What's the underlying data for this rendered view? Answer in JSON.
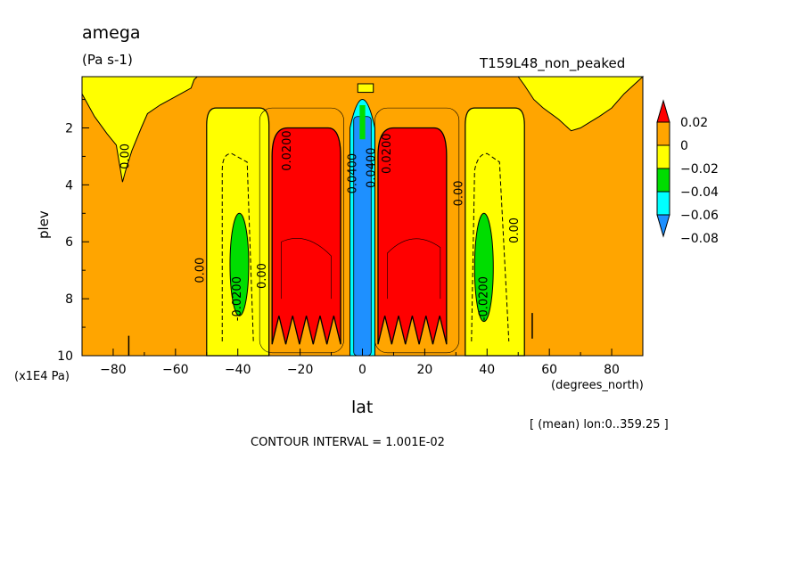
{
  "chart_data": {
    "type": "heatmap",
    "title": "amega",
    "units": "(Pa s-1)",
    "run_label": "T159L48_non_peaked",
    "xlabel": "lat",
    "x_units": "(degrees_north)",
    "ylabel": "plev",
    "y_units": "(x1E4 Pa)",
    "xlim": [
      -90,
      90
    ],
    "ylim": [
      10,
      0.2
    ],
    "x_ticks": [
      -80,
      -60,
      -40,
      -20,
      0,
      20,
      40,
      60,
      80
    ],
    "y_ticks": [
      2,
      4,
      6,
      8,
      10
    ],
    "averaging_note": "[ (mean) lon:0..359.25 ]",
    "contour_interval": "CONTOUR INTERVAL = 1.001E-02",
    "contour_labels": [
      "0.00",
      "-0.0200",
      "0.0200",
      "0.0400"
    ],
    "colorbar": {
      "labels": [
        "0.02",
        "0",
        "-0.02",
        "-0.04",
        "-0.06",
        "-0.08"
      ],
      "colors": [
        "#ff0000",
        "#ffa500",
        "#ffff00",
        "#00dd00",
        "#00ffff",
        "#1e90ff"
      ]
    },
    "regions": [
      {
        "name": "background",
        "value_range": "0 to 0.01",
        "color": "#ffa500"
      },
      {
        "name": "northern-high-lat-upper",
        "value_range": "-0.01 to 0",
        "color": "#ffff00"
      },
      {
        "name": "southern-high-lat-upper",
        "value_range": "-0.01 to 0",
        "color": "#ffff00"
      },
      {
        "name": "sh-midlat-descent-band",
        "lat_range": [
          -50,
          -30
        ],
        "plev_range": [
          1.3,
          10
        ],
        "value_range": "-0.02 to 0",
        "color": "#ffff00"
      },
      {
        "name": "nh-midlat-descent-band",
        "lat_range": [
          32,
          52
        ],
        "plev_range": [
          1.3,
          10
        ],
        "value_range": "-0.02 to 0",
        "color": "#ffff00"
      },
      {
        "name": "sh-midlat-core",
        "lat_range": [
          -42,
          -38
        ],
        "plev_range": [
          5,
          8.6
        ],
        "value_range": "-0.04 to -0.02",
        "color": "#00dd00"
      },
      {
        "name": "nh-midlat-core",
        "lat_range": [
          37,
          41
        ],
        "plev_range": [
          5,
          8.8
        ],
        "value_range": "-0.04 to -0.02",
        "color": "#00dd00"
      },
      {
        "name": "sh-subtropical-subsidence",
        "lat_range": [
          -29,
          -7
        ],
        "plev_range": [
          2,
          9.7
        ],
        "value_range": "> 0.01",
        "color": "#ff0000"
      },
      {
        "name": "nh-subtropical-subsidence",
        "lat_range": [
          5,
          27
        ],
        "plev_range": [
          2,
          9.7
        ],
        "value_range": "> 0.01",
        "color": "#ff0000"
      },
      {
        "name": "itcz-ascent",
        "lat_range": [
          -3,
          3
        ],
        "plev_range": [
          1.2,
          10
        ],
        "value_range": "< -0.06",
        "color": "#1e90ff"
      }
    ]
  }
}
